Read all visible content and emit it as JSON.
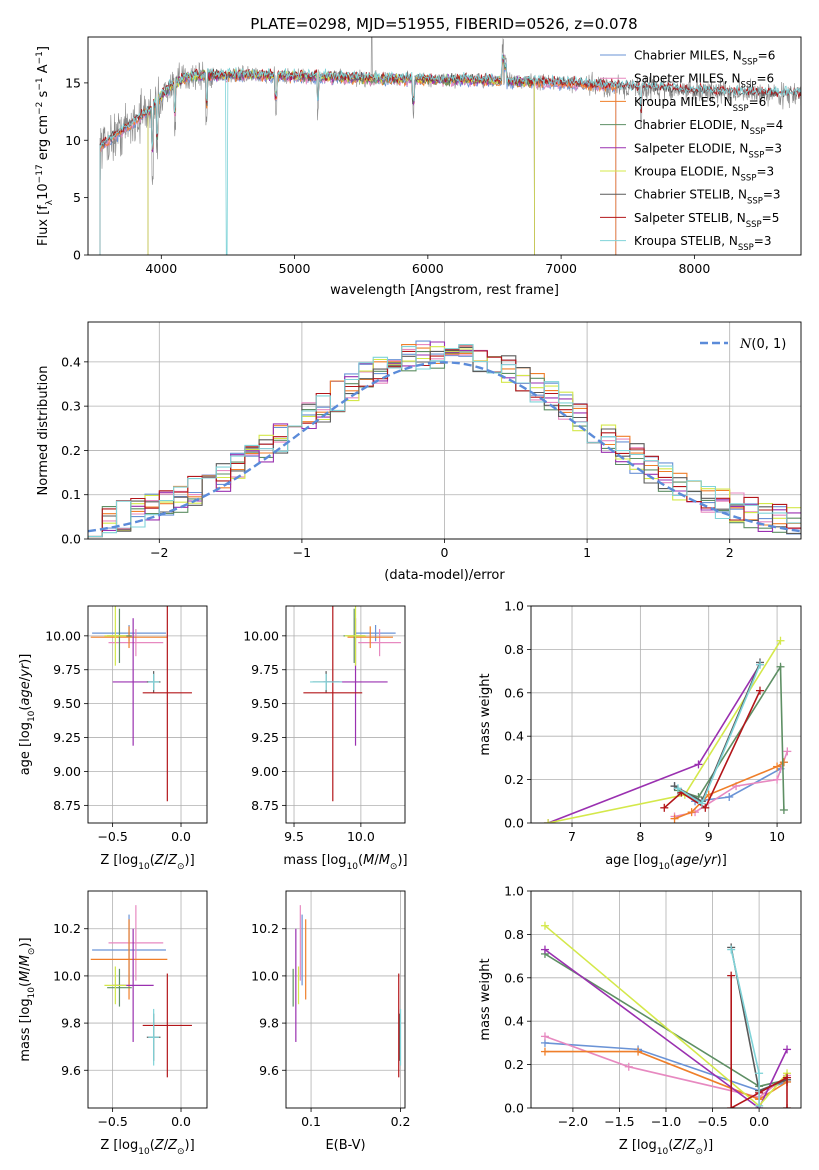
{
  "figure": {
    "title": "PLATE=0298, MJD=51955, FIBERID=0526, z=0.078"
  },
  "colors": {
    "Chabrier MILES": "#6a93d6",
    "Salpeter MILES": "#e789c0",
    "Kroupa MILES": "#ef7f2a",
    "Chabrier ELODIE": "#5e8f64",
    "Salpeter ELODIE": "#9a30b0",
    "Kroupa ELODIE": "#d4e84a",
    "Chabrier STELIB": "#5a5a5a",
    "Salpeter STELIB": "#b3161a",
    "Kroupa STELIB": "#7fd3d8",
    "gauss": "#5b8bd9"
  },
  "chart_data": [
    {
      "id": "spectrum",
      "type": "line",
      "title": "PLATE=0298, MJD=51955, FIBERID=0526, z=0.078",
      "xlabel": "wavelength [Angstrom, rest frame]",
      "ylabel": "Flux [f_λ 10^-17 erg cm^-2 s^-1 A^-1]",
      "xlim": [
        3450,
        8800
      ],
      "ylim": [
        0,
        19
      ],
      "xticks": [
        4000,
        5000,
        6000,
        7000,
        8000
      ],
      "yticks": [
        0,
        5,
        10,
        15
      ],
      "grid": false,
      "legend": "top-right",
      "legend_entries": [
        {
          "model": "Chabrier MILES",
          "n_ssp": 6
        },
        {
          "model": "Salpeter MILES",
          "n_ssp": 6
        },
        {
          "model": "Kroupa MILES",
          "n_ssp": 6
        },
        {
          "model": "Chabrier ELODIE",
          "n_ssp": 4
        },
        {
          "model": "Salpeter ELODIE",
          "n_ssp": 3
        },
        {
          "model": "Kroupa ELODIE",
          "n_ssp": 3
        },
        {
          "model": "Chabrier STELIB",
          "n_ssp": 3
        },
        {
          "model": "Salpeter STELIB",
          "n_ssp": 5
        },
        {
          "model": "Kroupa STELIB",
          "n_ssp": 3
        }
      ],
      "continuum": {
        "x": [
          3550,
          3700,
          3900,
          4050,
          4200,
          4500,
          5000,
          5500,
          6000,
          6500,
          7000,
          7500,
          8000,
          8500,
          8800
        ],
        "y": [
          9.5,
          10.8,
          12.5,
          14.5,
          15.6,
          15.7,
          15.6,
          15.4,
          15.3,
          15.2,
          15.0,
          14.6,
          14.3,
          14.1,
          14.0
        ]
      }
    },
    {
      "id": "residuals",
      "type": "line",
      "xlabel": "(data-model)/error",
      "ylabel": "Normed distribution",
      "xlim": [
        -2.5,
        2.5
      ],
      "ylim": [
        0,
        0.49
      ],
      "xticks": [
        -2,
        -1,
        0,
        1,
        2
      ],
      "yticks": [
        0.0,
        0.1,
        0.2,
        0.3,
        0.4
      ],
      "grid": true,
      "legend": "top-right",
      "gauss_label": "N(0,1)"
    },
    {
      "id": "age_vs_Z",
      "type": "scatter",
      "xlabel": "Z [log10(Z/Z⊙)]",
      "ylabel": "age  [log10(age/yr)]",
      "xlim": [
        -0.68,
        0.19
      ],
      "ylim": [
        8.62,
        10.22
      ],
      "xticks": [
        -0.5,
        0.0
      ],
      "yticks": [
        8.75,
        9.0,
        9.25,
        9.5,
        9.75,
        10.0
      ],
      "grid": true,
      "points": [
        {
          "m": "Chabrier MILES",
          "x": -0.38,
          "y": 10.02,
          "ex": 0.27,
          "ey": 0.06
        },
        {
          "m": "Salpeter MILES",
          "x": -0.33,
          "y": 9.95,
          "ex": 0.2,
          "ey": 0.1
        },
        {
          "m": "Kroupa MILES",
          "x": -0.38,
          "y": 9.99,
          "ex": 0.28,
          "ey": 0.08
        },
        {
          "m": "Chabrier ELODIE",
          "x": -0.45,
          "y": 10.0,
          "ex": 0.09,
          "ey": 0.2
        },
        {
          "m": "Salpeter ELODIE",
          "x": -0.35,
          "y": 9.66,
          "ex": 0.15,
          "ey": 0.47
        },
        {
          "m": "Kroupa ELODIE",
          "x": -0.48,
          "y": 10.0,
          "ex": 0.08,
          "ey": 0.22
        },
        {
          "m": "Chabrier STELIB",
          "x": -0.2,
          "y": 9.66,
          "ex": 0.05,
          "ey": 0.08
        },
        {
          "m": "Salpeter STELIB",
          "x": -0.1,
          "y": 9.58,
          "ex": 0.18,
          "ey": 0.8
        },
        {
          "m": "Kroupa STELIB",
          "x": -0.2,
          "y": 9.66,
          "ex": 0.04,
          "ey": 0.06
        }
      ]
    },
    {
      "id": "age_vs_mass",
      "type": "scatter",
      "xlabel": "mass [log10(M/M⊙)]",
      "ylabel": "",
      "xlim": [
        9.44,
        10.33
      ],
      "ylim": [
        8.62,
        10.22
      ],
      "xticks": [
        9.5,
        10.0
      ],
      "yticks": [
        8.75,
        9.0,
        9.25,
        9.5,
        9.75,
        10.0
      ],
      "grid": true,
      "points": [
        {
          "m": "Chabrier MILES",
          "x": 10.11,
          "y": 10.02,
          "ex": 0.15,
          "ey": 0.06
        },
        {
          "m": "Salpeter MILES",
          "x": 10.14,
          "y": 9.95,
          "ex": 0.16,
          "ey": 0.1
        },
        {
          "m": "Kroupa MILES",
          "x": 10.07,
          "y": 9.99,
          "ex": 0.17,
          "ey": 0.08
        },
        {
          "m": "Chabrier ELODIE",
          "x": 9.95,
          "y": 10.0,
          "ex": 0.08,
          "ey": 0.2
        },
        {
          "m": "Salpeter ELODIE",
          "x": 9.96,
          "y": 9.66,
          "ex": 0.24,
          "ey": 0.47
        },
        {
          "m": "Kroupa ELODIE",
          "x": 9.96,
          "y": 10.0,
          "ex": 0.08,
          "ey": 0.22
        },
        {
          "m": "Chabrier STELIB",
          "x": 9.74,
          "y": 9.66,
          "ex": 0.1,
          "ey": 0.08
        },
        {
          "m": "Salpeter STELIB",
          "x": 9.79,
          "y": 9.58,
          "ex": 0.22,
          "ey": 0.8
        },
        {
          "m": "Kroupa STELIB",
          "x": 9.74,
          "y": 9.66,
          "ex": 0.12,
          "ey": 0.06
        }
      ]
    },
    {
      "id": "massweight_vs_age",
      "type": "line",
      "xlabel": "age  [log10(age/yr)]",
      "ylabel": "mass weight",
      "xlim": [
        6.4,
        10.35
      ],
      "ylim": [
        0,
        1.0
      ],
      "xticks": [
        7,
        8,
        9,
        10
      ],
      "yticks": [
        0.0,
        0.2,
        0.4,
        0.6,
        0.8,
        1.0
      ],
      "grid": true,
      "series": [
        {
          "m": "Chabrier MILES",
          "x": [
            8.5,
            8.8,
            9.3,
            10.05,
            10.1
          ],
          "y": [
            0.17,
            0.1,
            0.12,
            0.25,
            0.28
          ]
        },
        {
          "m": "Salpeter MILES",
          "x": [
            8.5,
            8.8,
            9.4,
            10.0,
            10.15
          ],
          "y": [
            0.03,
            0.05,
            0.17,
            0.2,
            0.33
          ]
        },
        {
          "m": "Kroupa MILES",
          "x": [
            8.5,
            8.75,
            9.0,
            10.0,
            10.1
          ],
          "y": [
            0.02,
            0.05,
            0.13,
            0.26,
            0.28
          ]
        },
        {
          "m": "Chabrier ELODIE",
          "x": [
            8.55,
            8.85,
            10.05,
            10.1
          ],
          "y": [
            0.15,
            0.12,
            0.72,
            0.06
          ]
        },
        {
          "m": "Salpeter ELODIE",
          "x": [
            6.65,
            8.85,
            9.75
          ],
          "y": [
            0.0,
            0.27,
            0.73
          ]
        },
        {
          "m": "Kroupa ELODIE",
          "x": [
            6.65,
            8.65,
            10.05
          ],
          "y": [
            0.0,
            0.13,
            0.84
          ]
        },
        {
          "m": "Chabrier STELIB",
          "x": [
            8.5,
            8.9,
            9.75
          ],
          "y": [
            0.17,
            0.1,
            0.74
          ]
        },
        {
          "m": "Salpeter STELIB",
          "x": [
            8.35,
            8.6,
            8.95,
            9.75
          ],
          "y": [
            0.07,
            0.14,
            0.07,
            0.61
          ]
        },
        {
          "m": "Kroupa STELIB",
          "x": [
            8.55,
            8.9,
            9.75
          ],
          "y": [
            0.16,
            0.09,
            0.73
          ]
        }
      ]
    },
    {
      "id": "mass_vs_Z",
      "type": "scatter",
      "xlabel": "Z [log10(Z/Z⊙)]",
      "ylabel": "mass [log10(M/M⊙)]",
      "xlim": [
        -0.68,
        0.19
      ],
      "ylim": [
        9.44,
        10.36
      ],
      "xticks": [
        -0.5,
        0.0
      ],
      "yticks": [
        9.6,
        9.8,
        10.0,
        10.2
      ],
      "grid": true,
      "points": [
        {
          "m": "Chabrier MILES",
          "x": -0.38,
          "y": 10.11,
          "ex": 0.27,
          "ey": 0.15
        },
        {
          "m": "Salpeter MILES",
          "x": -0.33,
          "y": 10.14,
          "ex": 0.2,
          "ey": 0.16
        },
        {
          "m": "Kroupa MILES",
          "x": -0.38,
          "y": 10.07,
          "ex": 0.28,
          "ey": 0.17
        },
        {
          "m": "Chabrier ELODIE",
          "x": -0.45,
          "y": 9.95,
          "ex": 0.09,
          "ey": 0.08
        },
        {
          "m": "Salpeter ELODIE",
          "x": -0.35,
          "y": 9.96,
          "ex": 0.15,
          "ey": 0.24
        },
        {
          "m": "Kroupa ELODIE",
          "x": -0.48,
          "y": 9.96,
          "ex": 0.08,
          "ey": 0.08
        },
        {
          "m": "Chabrier STELIB",
          "x": -0.2,
          "y": 9.74,
          "ex": 0.05,
          "ey": 0.1
        },
        {
          "m": "Salpeter STELIB",
          "x": -0.1,
          "y": 9.79,
          "ex": 0.18,
          "ey": 0.22
        },
        {
          "m": "Kroupa STELIB",
          "x": -0.2,
          "y": 9.74,
          "ex": 0.04,
          "ey": 0.12
        }
      ]
    },
    {
      "id": "mass_vs_ebv",
      "type": "scatter",
      "xlabel": "E(B-V)",
      "ylabel": "",
      "xlim": [
        0.072,
        0.205
      ],
      "ylim": [
        9.44,
        10.36
      ],
      "xticks": [
        0.1,
        0.2
      ],
      "yticks": [
        9.6,
        9.8,
        10.0,
        10.2
      ],
      "grid": true,
      "points": [
        {
          "m": "Chabrier MILES",
          "x": 0.09,
          "y": 10.11,
          "ex": 0,
          "ey": 0.15
        },
        {
          "m": "Salpeter MILES",
          "x": 0.088,
          "y": 10.14,
          "ex": 0,
          "ey": 0.16
        },
        {
          "m": "Kroupa MILES",
          "x": 0.094,
          "y": 10.07,
          "ex": 0,
          "ey": 0.17
        },
        {
          "m": "Chabrier ELODIE",
          "x": 0.08,
          "y": 9.95,
          "ex": 0,
          "ey": 0.08
        },
        {
          "m": "Salpeter ELODIE",
          "x": 0.083,
          "y": 9.96,
          "ex": 0,
          "ey": 0.24
        },
        {
          "m": "Kroupa ELODIE",
          "x": 0.086,
          "y": 9.96,
          "ex": 0,
          "ey": 0.08
        },
        {
          "m": "Chabrier STELIB",
          "x": 0.199,
          "y": 9.74,
          "ex": 0,
          "ey": 0.1
        },
        {
          "m": "Salpeter STELIB",
          "x": 0.198,
          "y": 9.79,
          "ex": 0,
          "ey": 0.22
        },
        {
          "m": "Kroupa STELIB",
          "x": 0.2,
          "y": 9.74,
          "ex": 0,
          "ey": 0.12
        }
      ]
    },
    {
      "id": "massweight_vs_Z",
      "type": "line",
      "xlabel": "Z [log10(Z/Z⊙)]",
      "ylabel": "mass weight",
      "xlim": [
        -2.45,
        0.45
      ],
      "ylim": [
        0,
        1.0
      ],
      "xticks": [
        -2.0,
        -1.5,
        -1.0,
        -0.5,
        0.0
      ],
      "yticks": [
        0.0,
        0.2,
        0.4,
        0.6,
        0.8,
        1.0
      ],
      "grid": true,
      "series": [
        {
          "m": "Chabrier MILES",
          "x": [
            -2.3,
            -1.3,
            0.0,
            0.3
          ],
          "y": [
            0.3,
            0.27,
            0.08,
            0.12
          ]
        },
        {
          "m": "Salpeter MILES",
          "x": [
            -2.3,
            -1.4,
            0.0,
            0.3
          ],
          "y": [
            0.33,
            0.19,
            0.05,
            0.15
          ]
        },
        {
          "m": "Kroupa MILES",
          "x": [
            -2.3,
            -1.3,
            0.0,
            0.3
          ],
          "y": [
            0.26,
            0.26,
            0.04,
            0.12
          ]
        },
        {
          "m": "Chabrier ELODIE",
          "x": [
            -2.3,
            0.0,
            0.3
          ],
          "y": [
            0.71,
            0.1,
            0.13
          ]
        },
        {
          "m": "Salpeter ELODIE",
          "x": [
            -2.3,
            0.0,
            0.3
          ],
          "y": [
            0.73,
            0.0,
            0.27
          ]
        },
        {
          "m": "Kroupa ELODIE",
          "x": [
            -2.3,
            0.0,
            0.3
          ],
          "y": [
            0.84,
            0.01,
            0.16
          ]
        },
        {
          "m": "Chabrier STELIB",
          "x": [
            -0.3,
            0.0,
            0.3
          ],
          "y": [
            0.74,
            0.08,
            0.13
          ]
        },
        {
          "m": "Salpeter STELIB",
          "x": [
            -0.3,
            -0.3,
            0.0,
            0.3,
            0.3
          ],
          "y": [
            0.61,
            0.0,
            0.07,
            0.14,
            0.0
          ]
        },
        {
          "m": "Kroupa STELIB",
          "x": [
            -0.3,
            0.0,
            0.0
          ],
          "y": [
            0.73,
            0.16,
            0.01
          ]
        }
      ]
    }
  ]
}
